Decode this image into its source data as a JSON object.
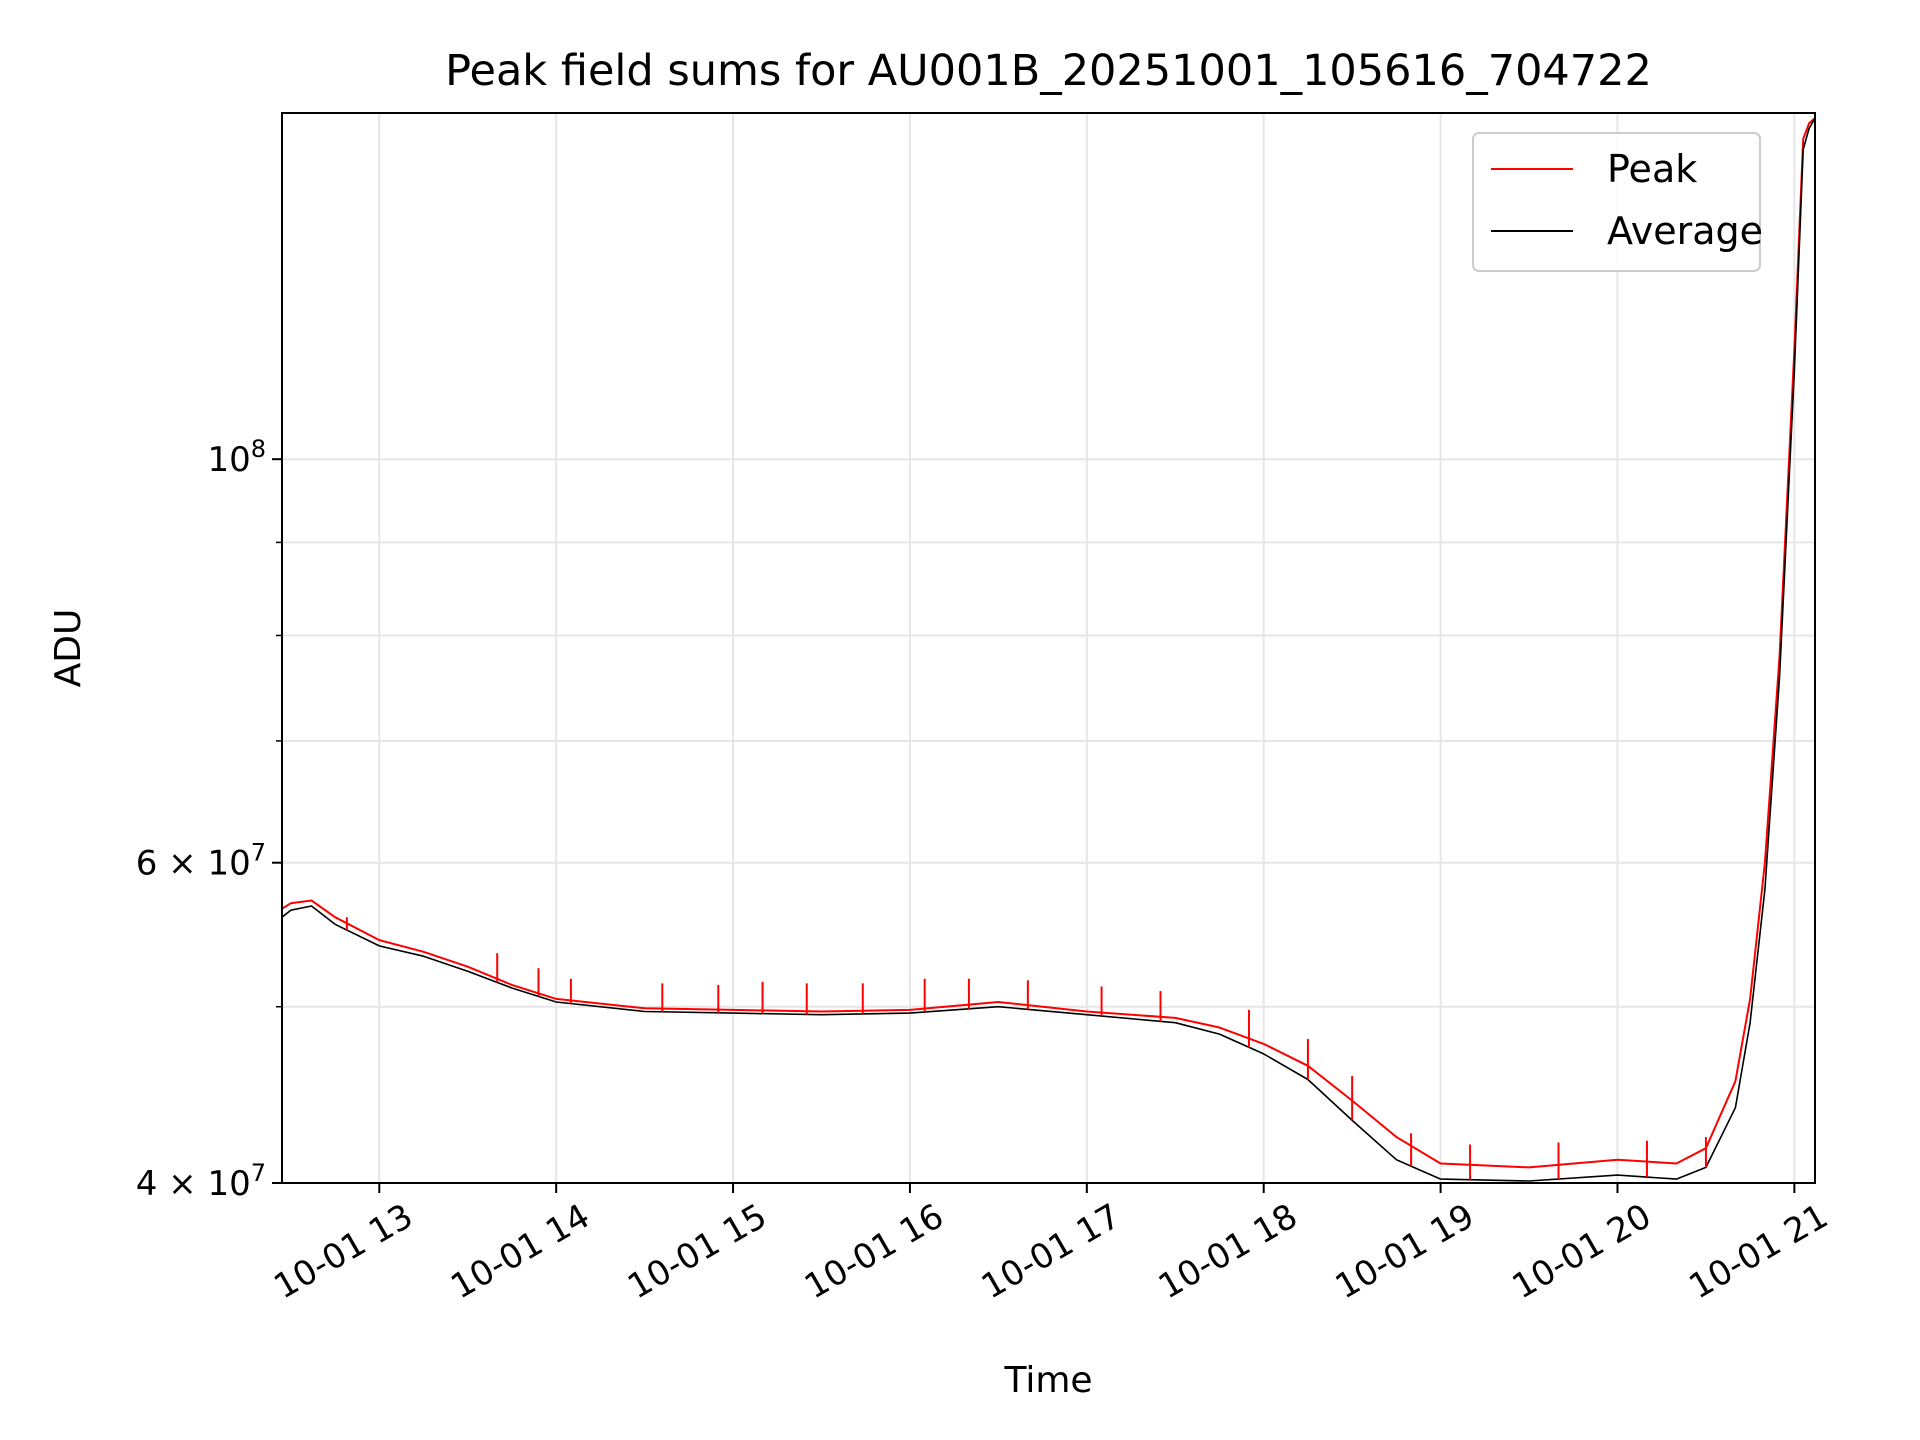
{
  "chart_data": {
    "type": "line",
    "title": "Peak field sums for AU001B_20251001_105616_704722",
    "xlabel": "Time",
    "ylabel": "ADU",
    "yscale": "log",
    "xlim": [
      "2025-10-01 12:27",
      "2025-10-01 21:07"
    ],
    "ylim": [
      40000000,
      155000000
    ],
    "grid": true,
    "legend_position": "top-right",
    "x_ticks": [
      "10-01 13",
      "10-01 14",
      "10-01 15",
      "10-01 16",
      "10-01 17",
      "10-01 18",
      "10-01 19",
      "10-01 20",
      "10-01 21"
    ],
    "y_ticks": [
      {
        "value": 40000000,
        "base": "4",
        "exp": "7",
        "kind": "mantissa"
      },
      {
        "value": 60000000,
        "base": "6",
        "exp": "7",
        "kind": "mantissa"
      },
      {
        "value": 100000000,
        "base": "10",
        "exp": "8",
        "kind": "power"
      }
    ],
    "y_minor_ticks": [
      50000000,
      70000000,
      80000000,
      90000000
    ],
    "series": [
      {
        "name": "Peak",
        "color": "#ff0000",
        "x": [
          "2025-10-01 12:27",
          "2025-10-01 12:30",
          "2025-10-01 12:37",
          "2025-10-01 12:45",
          "2025-10-01 13:00",
          "2025-10-01 13:15",
          "2025-10-01 13:30",
          "2025-10-01 13:45",
          "2025-10-01 14:00",
          "2025-10-01 14:30",
          "2025-10-01 15:00",
          "2025-10-01 15:30",
          "2025-10-01 16:00",
          "2025-10-01 16:30",
          "2025-10-01 17:00",
          "2025-10-01 17:30",
          "2025-10-01 17:45",
          "2025-10-01 18:00",
          "2025-10-01 18:15",
          "2025-10-01 18:30",
          "2025-10-01 18:45",
          "2025-10-01 19:00",
          "2025-10-01 19:30",
          "2025-10-01 20:00",
          "2025-10-01 20:20",
          "2025-10-01 20:30",
          "2025-10-01 20:40",
          "2025-10-01 20:45",
          "2025-10-01 20:50",
          "2025-10-01 20:55",
          "2025-10-01 21:00",
          "2025-10-01 21:03",
          "2025-10-01 21:05",
          "2025-10-01 21:07"
        ],
        "values": [
          56600000,
          57000000,
          57200000,
          56000000,
          54400000,
          53600000,
          52600000,
          51400000,
          50500000,
          49900000,
          49800000,
          49700000,
          49800000,
          50300000,
          49700000,
          49300000,
          48700000,
          47700000,
          46400000,
          44400000,
          42400000,
          41000000,
          40800000,
          41200000,
          41000000,
          41800000,
          45500000,
          50500000,
          60000000,
          78000000,
          115000000,
          150000000,
          153000000,
          154000000
        ]
      },
      {
        "name": "Average",
        "color": "#000000",
        "x": [
          "2025-10-01 12:27",
          "2025-10-01 12:30",
          "2025-10-01 12:37",
          "2025-10-01 12:45",
          "2025-10-01 13:00",
          "2025-10-01 13:15",
          "2025-10-01 13:30",
          "2025-10-01 13:45",
          "2025-10-01 14:00",
          "2025-10-01 14:30",
          "2025-10-01 15:00",
          "2025-10-01 15:30",
          "2025-10-01 16:00",
          "2025-10-01 16:30",
          "2025-10-01 17:00",
          "2025-10-01 17:30",
          "2025-10-01 17:45",
          "2025-10-01 18:00",
          "2025-10-01 18:15",
          "2025-10-01 18:30",
          "2025-10-01 18:45",
          "2025-10-01 19:00",
          "2025-10-01 19:30",
          "2025-10-01 20:00",
          "2025-10-01 20:20",
          "2025-10-01 20:30",
          "2025-10-01 20:40",
          "2025-10-01 20:45",
          "2025-10-01 20:50",
          "2025-10-01 20:55",
          "2025-10-01 21:00",
          "2025-10-01 21:03",
          "2025-10-01 21:05",
          "2025-10-01 21:07"
        ],
        "values": [
          56000000,
          56500000,
          56800000,
          55500000,
          54000000,
          53300000,
          52300000,
          51200000,
          50300000,
          49700000,
          49600000,
          49500000,
          49600000,
          50000000,
          49500000,
          49000000,
          48300000,
          47100000,
          45600000,
          43300000,
          41200000,
          40200000,
          40100000,
          40400000,
          40200000,
          40800000,
          44000000,
          49000000,
          58000000,
          76000000,
          112000000,
          148000000,
          152000000,
          154000000
        ]
      }
    ],
    "peak_spikes": [
      {
        "x": "2025-10-01 12:49",
        "value": 56000000
      },
      {
        "x": "2025-10-01 13:40",
        "value": 53500000
      },
      {
        "x": "2025-10-01 13:54",
        "value": 52500000
      },
      {
        "x": "2025-10-01 14:05",
        "value": 51800000
      },
      {
        "x": "2025-10-01 14:36",
        "value": 51500000
      },
      {
        "x": "2025-10-01 14:55",
        "value": 51400000
      },
      {
        "x": "2025-10-01 15:10",
        "value": 51600000
      },
      {
        "x": "2025-10-01 15:25",
        "value": 51500000
      },
      {
        "x": "2025-10-01 15:44",
        "value": 51500000
      },
      {
        "x": "2025-10-01 16:05",
        "value": 51800000
      },
      {
        "x": "2025-10-01 16:20",
        "value": 51800000
      },
      {
        "x": "2025-10-01 16:40",
        "value": 51700000
      },
      {
        "x": "2025-10-01 17:05",
        "value": 51300000
      },
      {
        "x": "2025-10-01 17:25",
        "value": 51000000
      },
      {
        "x": "2025-10-01 17:55",
        "value": 49800000
      },
      {
        "x": "2025-10-01 18:15",
        "value": 48000000
      },
      {
        "x": "2025-10-01 18:30",
        "value": 45800000
      },
      {
        "x": "2025-10-01 18:50",
        "value": 42600000
      },
      {
        "x": "2025-10-01 19:10",
        "value": 42000000
      },
      {
        "x": "2025-10-01 19:40",
        "value": 42100000
      },
      {
        "x": "2025-10-01 20:10",
        "value": 42200000
      },
      {
        "x": "2025-10-01 20:30",
        "value": 42400000
      }
    ]
  }
}
